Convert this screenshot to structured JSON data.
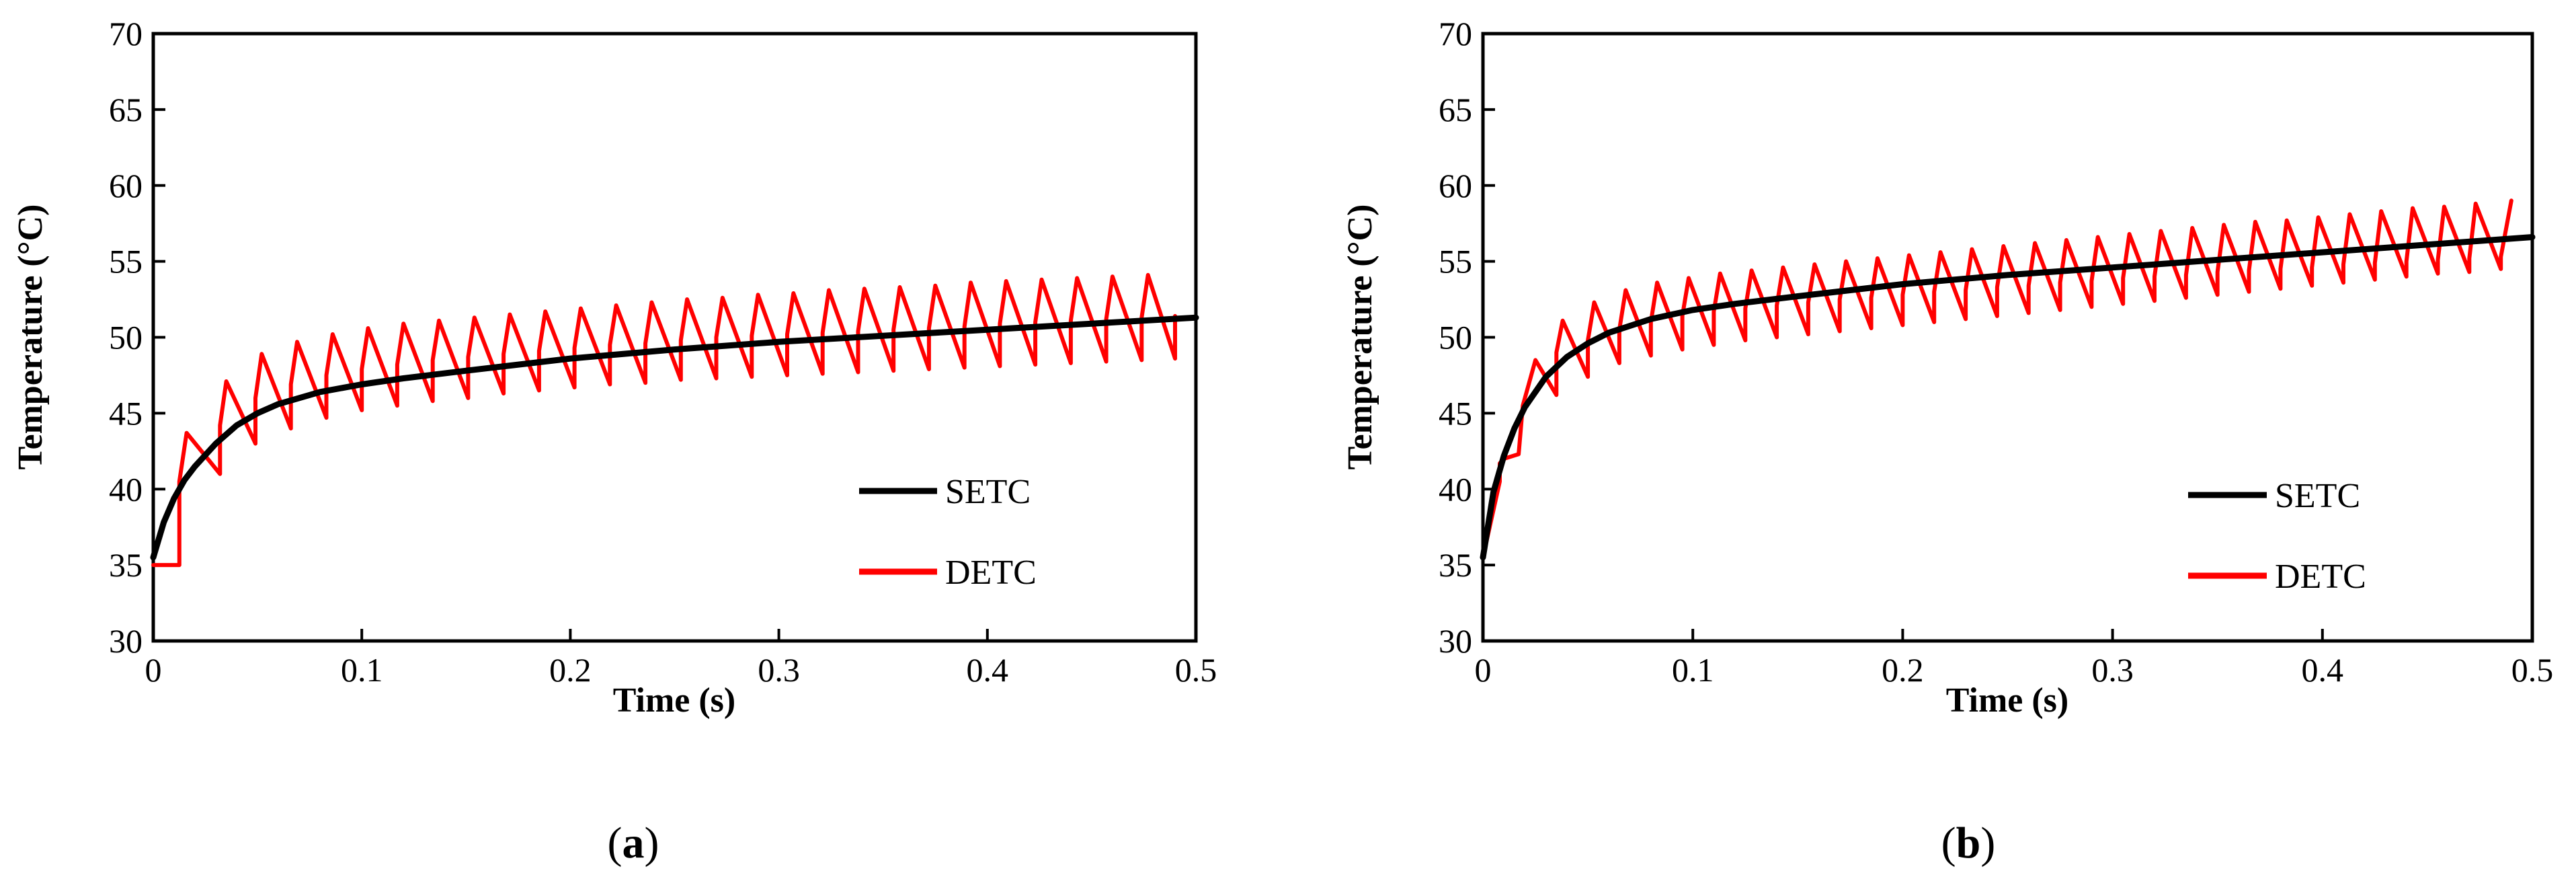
{
  "chart_data": [
    {
      "type": "line",
      "panel_label": "a",
      "caption": {
        "open": "(",
        "letter": "a",
        "close": ")"
      },
      "xlabel": "Time (s)",
      "ylabel": "Temperature (°C)",
      "xlim": [
        0,
        0.5
      ],
      "ylim": [
        30,
        70
      ],
      "xticks": [
        0,
        0.1,
        0.2,
        0.3,
        0.4,
        0.5
      ],
      "xtick_labels": [
        "0",
        "0.1",
        "0.2",
        "0.3",
        "0.4",
        "0.5"
      ],
      "yticks": [
        30,
        35,
        40,
        45,
        50,
        55,
        60,
        65,
        70
      ],
      "ytick_labels": [
        "30",
        "35",
        "40",
        "45",
        "50",
        "55",
        "60",
        "65",
        "70"
      ],
      "grid": false,
      "legend_position": "bottom-right",
      "series": [
        {
          "name": "SETC",
          "color": "#000000",
          "x": [
            0,
            0.005,
            0.01,
            0.015,
            0.02,
            0.03,
            0.04,
            0.05,
            0.06,
            0.08,
            0.1,
            0.12,
            0.15,
            0.2,
            0.25,
            0.3,
            0.35,
            0.4,
            0.45,
            0.5
          ],
          "y": [
            35.5,
            37.8,
            39.4,
            40.6,
            41.5,
            43.0,
            44.2,
            45.0,
            45.6,
            46.4,
            46.9,
            47.3,
            47.8,
            48.6,
            49.2,
            49.7,
            50.1,
            50.5,
            50.9,
            51.3
          ]
        },
        {
          "name": "DETC",
          "color": "#ff0000",
          "x": [
            0,
            0.0125,
            0.0125,
            0.016,
            0.032,
            0.032,
            0.035,
            0.049,
            0.049,
            0.052,
            0.066,
            0.066,
            0.069,
            0.083,
            0.083,
            0.086,
            0.1,
            0.1,
            0.103,
            0.117,
            0.117,
            0.12,
            0.134,
            0.134,
            0.137,
            0.151,
            0.151,
            0.154,
            0.168,
            0.168,
            0.171,
            0.185,
            0.185,
            0.188,
            0.202,
            0.202,
            0.205,
            0.219,
            0.219,
            0.222,
            0.236,
            0.236,
            0.239,
            0.253,
            0.253,
            0.256,
            0.27,
            0.27,
            0.273,
            0.287,
            0.287,
            0.29,
            0.304,
            0.304,
            0.307,
            0.321,
            0.321,
            0.324,
            0.338,
            0.338,
            0.341,
            0.355,
            0.355,
            0.358,
            0.372,
            0.372,
            0.375,
            0.389,
            0.389,
            0.392,
            0.406,
            0.406,
            0.409,
            0.423,
            0.423,
            0.426,
            0.44,
            0.44,
            0.443,
            0.457,
            0.457,
            0.46,
            0.474,
            0.474,
            0.477,
            0.49,
            0.49
          ],
          "y": [
            35,
            35,
            40.5,
            43.7,
            41.0,
            44.2,
            47.1,
            43.0,
            46.0,
            48.9,
            44.0,
            46.9,
            49.7,
            44.7,
            47.5,
            50.2,
            45.2,
            47.9,
            50.6,
            45.5,
            48.2,
            50.9,
            45.8,
            48.5,
            51.1,
            46.0,
            48.7,
            51.3,
            46.3,
            48.9,
            51.5,
            46.5,
            49.1,
            51.7,
            46.7,
            49.3,
            51.9,
            46.9,
            49.5,
            52.1,
            47.0,
            49.6,
            52.3,
            47.2,
            49.8,
            52.5,
            47.3,
            50.0,
            52.6,
            47.4,
            50.1,
            52.8,
            47.5,
            50.2,
            52.9,
            47.6,
            50.3,
            53.1,
            47.7,
            50.4,
            53.2,
            47.8,
            50.5,
            53.3,
            47.9,
            50.6,
            53.4,
            48.0,
            50.7,
            53.6,
            48.1,
            50.9,
            53.7,
            48.2,
            51.0,
            53.8,
            48.3,
            51.1,
            53.9,
            48.4,
            51.2,
            54.0,
            48.5,
            51.3,
            54.1,
            48.6,
            51.4
          ]
        }
      ]
    },
    {
      "type": "line",
      "panel_label": "b",
      "caption": {
        "open": "(",
        "letter": "b",
        "close": ")"
      },
      "xlabel": "Time (s)",
      "ylabel": "Temperature (°C)",
      "xlim": [
        0,
        0.5
      ],
      "ylim": [
        30,
        70
      ],
      "xticks": [
        0,
        0.1,
        0.2,
        0.3,
        0.4,
        0.5
      ],
      "xtick_labels": [
        "0",
        "0.1",
        "0.2",
        "0.3",
        "0.4",
        "0.5"
      ],
      "yticks": [
        30,
        35,
        40,
        45,
        50,
        55,
        60,
        65,
        70
      ],
      "ytick_labels": [
        "30",
        "35",
        "40",
        "45",
        "50",
        "55",
        "60",
        "65",
        "70"
      ],
      "grid": false,
      "legend_position": "bottom-right",
      "series": [
        {
          "name": "SETC",
          "color": "#000000",
          "x": [
            0,
            0.005,
            0.01,
            0.015,
            0.02,
            0.03,
            0.04,
            0.05,
            0.06,
            0.08,
            0.1,
            0.12,
            0.15,
            0.2,
            0.25,
            0.3,
            0.35,
            0.4,
            0.45,
            0.5
          ],
          "y": [
            35.5,
            39.8,
            42.2,
            44.0,
            45.4,
            47.4,
            48.7,
            49.6,
            50.3,
            51.2,
            51.8,
            52.2,
            52.7,
            53.5,
            54.1,
            54.6,
            55.1,
            55.6,
            56.1,
            56.6
          ]
        },
        {
          "name": "DETC",
          "color": "#ff0000",
          "x": [
            0,
            0.008,
            0.008,
            0.01,
            0.017,
            0.017,
            0.019,
            0.025,
            0.035,
            0.035,
            0.038,
            0.05,
            0.05,
            0.053,
            0.065,
            0.065,
            0.068,
            0.08,
            0.08,
            0.083,
            0.095,
            0.095,
            0.098,
            0.11,
            0.11,
            0.113,
            0.125,
            0.125,
            0.128,
            0.14,
            0.14,
            0.143,
            0.155,
            0.155,
            0.158,
            0.17,
            0.17,
            0.173,
            0.185,
            0.185,
            0.188,
            0.2,
            0.2,
            0.203,
            0.215,
            0.215,
            0.218,
            0.23,
            0.23,
            0.233,
            0.245,
            0.245,
            0.248,
            0.26,
            0.26,
            0.263,
            0.275,
            0.275,
            0.278,
            0.29,
            0.29,
            0.293,
            0.305,
            0.305,
            0.308,
            0.32,
            0.32,
            0.323,
            0.335,
            0.335,
            0.338,
            0.35,
            0.35,
            0.353,
            0.365,
            0.365,
            0.368,
            0.38,
            0.38,
            0.383,
            0.395,
            0.395,
            0.398,
            0.41,
            0.41,
            0.413,
            0.425,
            0.425,
            0.428,
            0.44,
            0.44,
            0.443,
            0.455,
            0.455,
            0.458,
            0.47,
            0.47,
            0.473,
            0.485,
            0.485,
            0.49
          ],
          "y": [
            35.5,
            40.5,
            41.7,
            42.0,
            42.3,
            42.3,
            45.5,
            48.5,
            46.2,
            49.0,
            51.1,
            47.4,
            49.8,
            52.3,
            48.3,
            50.5,
            53.1,
            48.8,
            51.0,
            53.6,
            49.2,
            51.4,
            53.9,
            49.5,
            51.7,
            54.2,
            49.8,
            51.9,
            54.4,
            50.0,
            52.1,
            54.6,
            50.2,
            52.3,
            54.8,
            50.4,
            52.5,
            55.0,
            50.6,
            52.6,
            55.2,
            50.8,
            52.8,
            55.4,
            51.0,
            53.0,
            55.6,
            51.2,
            53.1,
            55.8,
            51.4,
            53.3,
            56.0,
            51.6,
            53.4,
            56.2,
            51.8,
            53.6,
            56.4,
            52.0,
            53.7,
            56.6,
            52.2,
            53.9,
            56.8,
            52.4,
            54.0,
            57.0,
            52.6,
            54.1,
            57.2,
            52.8,
            54.3,
            57.4,
            53.0,
            54.4,
            57.6,
            53.2,
            54.5,
            57.7,
            53.4,
            54.6,
            57.9,
            53.6,
            54.8,
            58.1,
            53.8,
            54.9,
            58.3,
            54.0,
            55.0,
            58.5,
            54.2,
            55.1,
            58.6,
            54.3,
            55.2,
            58.8,
            54.5,
            55.3,
            59.0
          ]
        }
      ]
    }
  ]
}
